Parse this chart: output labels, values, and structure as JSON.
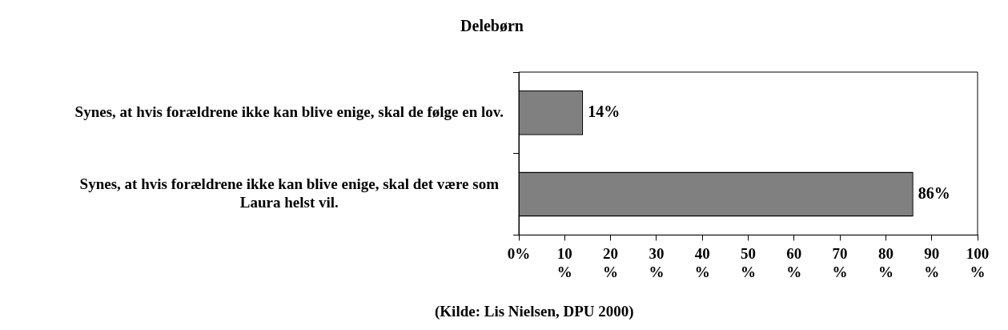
{
  "chart_data": {
    "type": "bar",
    "orientation": "horizontal",
    "title": "Delebørn",
    "categories": [
      "Synes, at hvis forældrene ikke kan blive enige, skal de følge en lov.",
      "Synes, at hvis forældrene ikke kan blive enige, skal det være som Laura helst vil."
    ],
    "values": [
      14,
      86
    ],
    "color": "#808080",
    "xlim": [
      0,
      100
    ],
    "xticks": [
      {
        "value": 0,
        "label": "0%"
      },
      {
        "value": 10,
        "label": "10 %"
      },
      {
        "value": 20,
        "label": "20 %"
      },
      {
        "value": 30,
        "label": "30 %"
      },
      {
        "value": 40,
        "label": "40 %"
      },
      {
        "value": 50,
        "label": "50 %"
      },
      {
        "value": 60,
        "label": "60 %"
      },
      {
        "value": 70,
        "label": "70 %"
      },
      {
        "value": 80,
        "label": "80 %"
      },
      {
        "value": 90,
        "label": "90 %"
      },
      {
        "value": 100,
        "label": "100 %"
      }
    ],
    "value_labels": [
      "14%",
      "86%"
    ],
    "grid": false,
    "legend": false,
    "annotations": [
      "(Kilde: Lis Nielsen, DPU 2000)"
    ]
  }
}
